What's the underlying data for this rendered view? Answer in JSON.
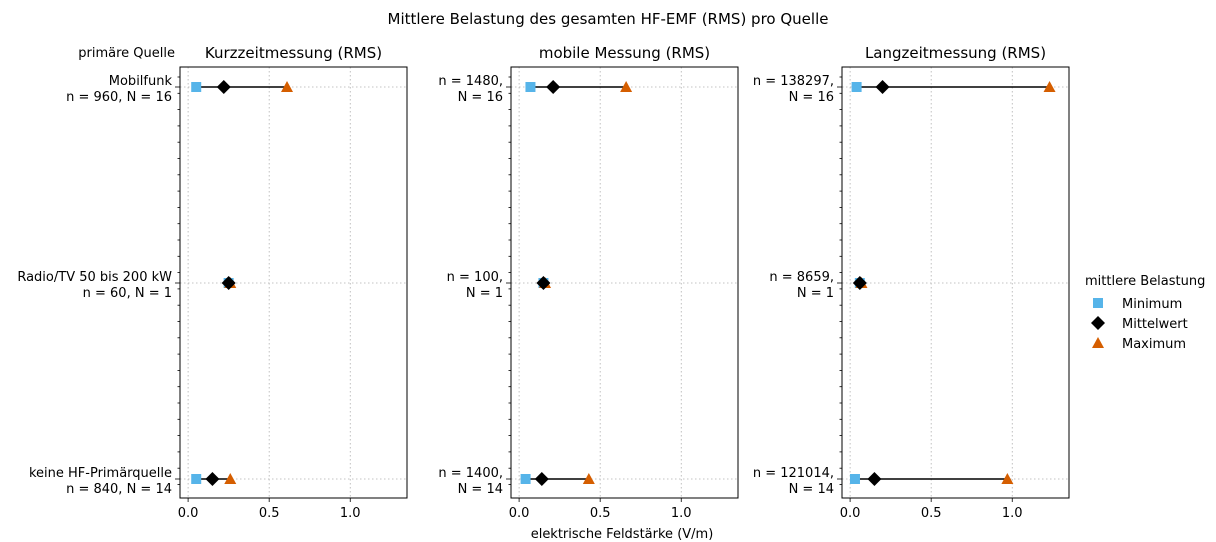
{
  "chart_data": {
    "type": "dot_range",
    "title": "Mittlere Belastung des gesamten HF-EMF (RMS) pro Quelle",
    "xlabel": "elektrische Feldstärke (V/m)",
    "ylabel": "primäre Quelle",
    "xlim": [
      -0.05,
      1.35
    ],
    "xticks": [
      0.0,
      0.5,
      1.0
    ],
    "xtick_labels": [
      "0.0",
      "0.5",
      "1.0"
    ],
    "grid": true,
    "categories": [
      {
        "label": [
          "Mobilfunk",
          "n = 960, N = 16"
        ]
      },
      {
        "label": [
          "Radio/TV 50 bis 200 kW",
          "n = 60, N = 1"
        ]
      },
      {
        "label": [
          "keine HF-Primärquelle",
          "n = 840, N = 14"
        ]
      }
    ],
    "legend": {
      "title": "mittlere Belastung",
      "position": "right",
      "entries": [
        {
          "name": "Minimum",
          "marker": "square",
          "color": "#56b4e9"
        },
        {
          "name": "Mittelwert",
          "marker": "diamond",
          "color": "#000000"
        },
        {
          "name": "Maximum",
          "marker": "triangle",
          "color": "#d55e00"
        }
      ]
    },
    "panels": [
      {
        "title": "Kurzzeitmessung (RMS)",
        "rows": [
          {
            "min": 0.05,
            "mean": 0.22,
            "max": 0.61
          },
          {
            "min": 0.25,
            "mean": 0.25,
            "max": 0.26
          },
          {
            "min": 0.05,
            "mean": 0.15,
            "max": 0.26
          }
        ]
      },
      {
        "title": "mobile Messung (RMS)",
        "row_labels": [
          [
            "n = 1480,",
            "N = 16"
          ],
          [
            "n = 100,",
            "N = 1"
          ],
          [
            "n = 1400,",
            "N = 14"
          ]
        ],
        "rows": [
          {
            "min": 0.07,
            "mean": 0.21,
            "max": 0.66
          },
          {
            "min": 0.15,
            "mean": 0.15,
            "max": 0.16
          },
          {
            "min": 0.04,
            "mean": 0.14,
            "max": 0.43
          }
        ]
      },
      {
        "title": "Langzeitmessung (RMS)",
        "row_labels": [
          [
            "n = 138297,",
            "N = 16"
          ],
          [
            "n = 8659,",
            "N = 1"
          ],
          [
            "n = 121014,",
            "N = 14"
          ]
        ],
        "rows": [
          {
            "min": 0.04,
            "mean": 0.2,
            "max": 1.23
          },
          {
            "min": 0.06,
            "mean": 0.06,
            "max": 0.07
          },
          {
            "min": 0.03,
            "mean": 0.15,
            "max": 0.97
          }
        ]
      }
    ]
  }
}
